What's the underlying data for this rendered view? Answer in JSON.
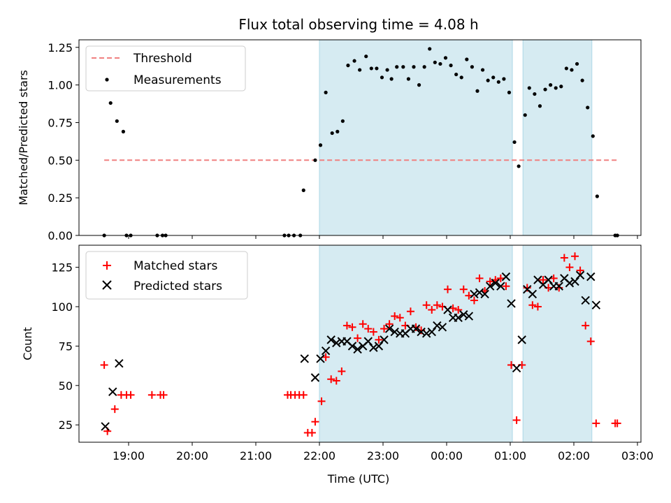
{
  "title": "Flux total observing time = 4.08 h",
  "chart_data": [
    {
      "type": "scatter",
      "panel": "top",
      "ylabel": "Matched/Predicted stars",
      "ylim": [
        0,
        1.3
      ],
      "yticks": [
        0.0,
        0.25,
        0.5,
        0.75,
        1.0,
        1.25
      ],
      "ytick_labels": [
        "0.00",
        "0.25",
        "0.50",
        "0.75",
        "1.00",
        "1.25"
      ],
      "threshold": {
        "name": "Threshold",
        "value": 0.5,
        "x_range": [
          "18:37",
          "02:41"
        ],
        "color": "#f08080"
      },
      "shaded_intervals": [
        [
          "22:00",
          "01:02"
        ],
        [
          "01:12",
          "02:17"
        ]
      ],
      "shade_color": "#add8e6",
      "legend": {
        "placement": "top-left",
        "entries": [
          "Threshold",
          "Measurements"
        ]
      },
      "series": [
        {
          "name": "Measurements",
          "color": "#000000",
          "points": [
            [
              "18:37",
              0.0
            ],
            [
              "18:43",
              0.88
            ],
            [
              "18:49",
              0.76
            ],
            [
              "18:55",
              0.69
            ],
            [
              "18:58",
              0.0
            ],
            [
              "19:02",
              0.0
            ],
            [
              "19:27",
              0.0
            ],
            [
              "19:32",
              0.0
            ],
            [
              "19:35",
              0.0
            ],
            [
              "21:27",
              0.0
            ],
            [
              "21:31",
              0.0
            ],
            [
              "21:36",
              0.0
            ],
            [
              "21:42",
              0.0
            ],
            [
              "21:45",
              0.3
            ],
            [
              "21:56",
              0.5
            ],
            [
              "22:01",
              0.6
            ],
            [
              "22:06",
              0.95
            ],
            [
              "22:12",
              0.68
            ],
            [
              "22:17",
              0.69
            ],
            [
              "22:22",
              0.76
            ],
            [
              "22:27",
              1.13
            ],
            [
              "22:33",
              1.16
            ],
            [
              "22:38",
              1.1
            ],
            [
              "22:44",
              1.19
            ],
            [
              "22:49",
              1.11
            ],
            [
              "22:54",
              1.11
            ],
            [
              "22:59",
              1.05
            ],
            [
              "23:04",
              1.1
            ],
            [
              "23:08",
              1.04
            ],
            [
              "23:13",
              1.12
            ],
            [
              "23:19",
              1.12
            ],
            [
              "23:24",
              1.04
            ],
            [
              "23:29",
              1.12
            ],
            [
              "23:34",
              1.0
            ],
            [
              "23:39",
              1.12
            ],
            [
              "23:44",
              1.24
            ],
            [
              "23:49",
              1.15
            ],
            [
              "23:54",
              1.14
            ],
            [
              "23:59",
              1.18
            ],
            [
              "00:04",
              1.13
            ],
            [
              "00:09",
              1.07
            ],
            [
              "00:14",
              1.05
            ],
            [
              "00:19",
              1.17
            ],
            [
              "00:24",
              1.12
            ],
            [
              "00:29",
              0.96
            ],
            [
              "00:34",
              1.1
            ],
            [
              "00:39",
              1.03
            ],
            [
              "00:44",
              1.05
            ],
            [
              "00:49",
              1.02
            ],
            [
              "00:54",
              1.04
            ],
            [
              "00:59",
              0.95
            ],
            [
              "01:04",
              0.62
            ],
            [
              "01:08",
              0.46
            ],
            [
              "01:14",
              0.8
            ],
            [
              "01:18",
              0.98
            ],
            [
              "01:23",
              0.94
            ],
            [
              "01:28",
              0.86
            ],
            [
              "01:33",
              0.97
            ],
            [
              "01:38",
              1.0
            ],
            [
              "01:43",
              0.98
            ],
            [
              "01:48",
              0.99
            ],
            [
              "01:53",
              1.11
            ],
            [
              "01:58",
              1.1
            ],
            [
              "02:03",
              1.14
            ],
            [
              "02:08",
              1.03
            ],
            [
              "02:13",
              0.85
            ],
            [
              "02:18",
              0.66
            ],
            [
              "02:22",
              0.26
            ],
            [
              "02:39",
              0.0
            ],
            [
              "02:41",
              0.0
            ]
          ]
        }
      ]
    },
    {
      "type": "scatter",
      "panel": "bottom",
      "xlabel": "Time (UTC)",
      "ylabel": "Count",
      "ylim": [
        14,
        139
      ],
      "yticks": [
        25,
        50,
        75,
        100,
        125
      ],
      "ytick_labels": [
        "25",
        "50",
        "75",
        "100",
        "125"
      ],
      "x_ticks": [
        "19:00",
        "20:00",
        "21:00",
        "22:00",
        "23:00",
        "00:00",
        "01:00",
        "02:00",
        "03:00"
      ],
      "shaded_intervals": [
        [
          "22:00",
          "01:02"
        ],
        [
          "01:12",
          "02:17"
        ]
      ],
      "legend": {
        "placement": "top-left",
        "entries": [
          "Matched stars",
          "Predicted stars"
        ]
      },
      "series": [
        {
          "name": "Matched stars",
          "color": "#ff0000",
          "points": [
            [
              "18:37",
              63
            ],
            [
              "18:40",
              21
            ],
            [
              "18:47",
              35
            ],
            [
              "18:53",
              44
            ],
            [
              "18:58",
              44
            ],
            [
              "19:02",
              44
            ],
            [
              "19:22",
              44
            ],
            [
              "19:30",
              44
            ],
            [
              "19:33",
              44
            ],
            [
              "21:30",
              44
            ],
            [
              "21:33",
              44
            ],
            [
              "21:37",
              44
            ],
            [
              "21:41",
              44
            ],
            [
              "21:45",
              44
            ],
            [
              "21:49",
              20
            ],
            [
              "21:53",
              20
            ],
            [
              "21:56",
              27
            ],
            [
              "22:02",
              40
            ],
            [
              "22:06",
              68
            ],
            [
              "22:11",
              54
            ],
            [
              "22:16",
              53
            ],
            [
              "22:21",
              59
            ],
            [
              "22:26",
              88
            ],
            [
              "22:31",
              87
            ],
            [
              "22:36",
              80
            ],
            [
              "22:41",
              89
            ],
            [
              "22:46",
              86
            ],
            [
              "22:51",
              84
            ],
            [
              "22:56",
              79
            ],
            [
              "23:01",
              86
            ],
            [
              "23:06",
              89
            ],
            [
              "23:11",
              94
            ],
            [
              "23:16",
              93
            ],
            [
              "23:21",
              88
            ],
            [
              "23:26",
              97
            ],
            [
              "23:31",
              87
            ],
            [
              "23:36",
              85
            ],
            [
              "23:41",
              101
            ],
            [
              "23:46",
              98
            ],
            [
              "23:51",
              101
            ],
            [
              "23:56",
              100
            ],
            [
              "00:01",
              111
            ],
            [
              "00:06",
              99
            ],
            [
              "00:11",
              98
            ],
            [
              "00:16",
              111
            ],
            [
              "00:21",
              107
            ],
            [
              "00:26",
              104
            ],
            [
              "00:31",
              118
            ],
            [
              "00:36",
              110
            ],
            [
              "00:41",
              116
            ],
            [
              "00:46",
              117
            ],
            [
              "00:51",
              118
            ],
            [
              "00:56",
              113
            ],
            [
              "01:01",
              63
            ],
            [
              "01:06",
              28
            ],
            [
              "01:11",
              63
            ],
            [
              "01:16",
              112
            ],
            [
              "01:21",
              101
            ],
            [
              "01:26",
              100
            ],
            [
              "01:31",
              117
            ],
            [
              "01:36",
              112
            ],
            [
              "01:41",
              118
            ],
            [
              "01:46",
              112
            ],
            [
              "01:51",
              131
            ],
            [
              "01:56",
              125
            ],
            [
              "02:01",
              132
            ],
            [
              "02:06",
              123
            ],
            [
              "02:11",
              88
            ],
            [
              "02:16",
              78
            ],
            [
              "02:21",
              26
            ],
            [
              "02:39",
              26
            ],
            [
              "02:41",
              26
            ]
          ]
        },
        {
          "name": "Predicted stars",
          "color": "#000000",
          "points": [
            [
              "18:38",
              24
            ],
            [
              "18:45",
              46
            ],
            [
              "18:51",
              64
            ],
            [
              "21:46",
              67
            ],
            [
              "21:56",
              55
            ],
            [
              "22:01",
              67
            ],
            [
              "22:06",
              72
            ],
            [
              "22:11",
              79
            ],
            [
              "22:16",
              77
            ],
            [
              "22:21",
              78
            ],
            [
              "22:26",
              78
            ],
            [
              "22:31",
              75
            ],
            [
              "22:36",
              73
            ],
            [
              "22:41",
              75
            ],
            [
              "22:46",
              78
            ],
            [
              "22:51",
              74
            ],
            [
              "22:56",
              75
            ],
            [
              "23:01",
              79
            ],
            [
              "23:06",
              86
            ],
            [
              "23:11",
              84
            ],
            [
              "23:16",
              83
            ],
            [
              "23:21",
              83
            ],
            [
              "23:26",
              86
            ],
            [
              "23:31",
              86
            ],
            [
              "23:36",
              84
            ],
            [
              "23:41",
              83
            ],
            [
              "23:46",
              84
            ],
            [
              "23:51",
              88
            ],
            [
              "23:56",
              87
            ],
            [
              "00:01",
              98
            ],
            [
              "00:06",
              93
            ],
            [
              "00:11",
              93
            ],
            [
              "00:16",
              95
            ],
            [
              "00:21",
              94
            ],
            [
              "00:26",
              108
            ],
            [
              "00:31",
              109
            ],
            [
              "00:36",
              108
            ],
            [
              "00:41",
              113
            ],
            [
              "00:46",
              115
            ],
            [
              "00:51",
              113
            ],
            [
              "00:56",
              119
            ],
            [
              "01:01",
              102
            ],
            [
              "01:06",
              61
            ],
            [
              "01:11",
              79
            ],
            [
              "01:16",
              111
            ],
            [
              "01:21",
              108
            ],
            [
              "01:26",
              117
            ],
            [
              "01:31",
              114
            ],
            [
              "01:36",
              117
            ],
            [
              "01:41",
              113
            ],
            [
              "01:46",
              113
            ],
            [
              "01:51",
              118
            ],
            [
              "01:56",
              115
            ],
            [
              "02:01",
              116
            ],
            [
              "02:06",
              120
            ],
            [
              "02:11",
              104
            ],
            [
              "02:16",
              119
            ],
            [
              "02:21",
              101
            ]
          ]
        }
      ]
    }
  ]
}
